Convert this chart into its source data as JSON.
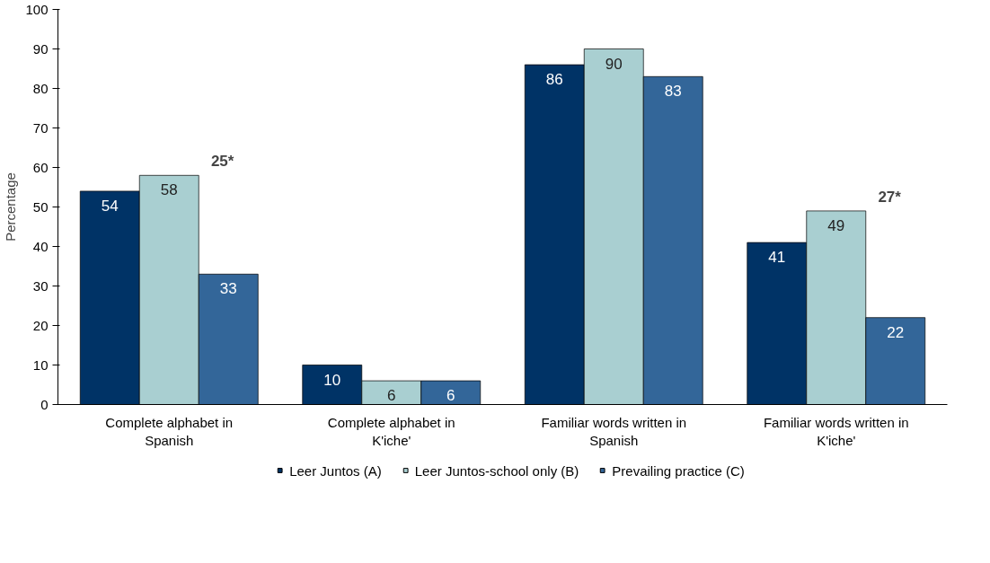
{
  "chart_data": {
    "type": "bar",
    "ylabel": "Percentage",
    "categories": [
      "Complete alphabet in Spanish",
      "Complete alphabet in K'iche'",
      "Familiar words written in Spanish",
      "Familiar words written in K'iche'"
    ],
    "series": [
      {
        "name": "Leer Juntos (A)",
        "color": "#003366",
        "values": [
          54,
          10,
          86,
          41
        ]
      },
      {
        "name": "Leer Juntos-school only (B)",
        "color": "#a9cfd1",
        "values": [
          58,
          6,
          90,
          49
        ]
      },
      {
        "name": "Prevailing practice (C)",
        "color": "#336699",
        "values": [
          33,
          6,
          83,
          22
        ]
      }
    ],
    "annotations": [
      "25*",
      "27*"
    ],
    "ylim": [
      0,
      100
    ],
    "yticks": [
      0,
      10,
      20,
      30,
      40,
      50,
      60,
      70,
      80,
      90,
      100
    ],
    "data_labels": true,
    "grid": false,
    "legend": "bottom"
  }
}
